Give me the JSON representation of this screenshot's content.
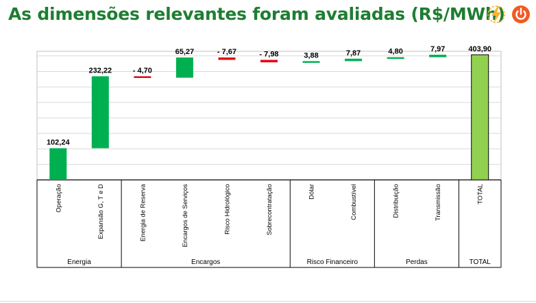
{
  "header": {
    "title": "As dimensões relevantes foram avaliadas (R$/MWh)"
  },
  "colors": {
    "title": "#1e7d32",
    "positive": "#00b050",
    "negative": "#e30613",
    "total": "#92d050",
    "logo_yellow": "#f9b233",
    "logo_orange": "#f15a24"
  },
  "icons": {
    "logo_left": "lightning-bolt-icon",
    "logo_right": "power-icon"
  },
  "chart_data": {
    "type": "bar",
    "subtype": "waterfall",
    "title": "",
    "xlabel": "",
    "ylabel": "",
    "ylim": [
      0,
      415
    ],
    "grid": true,
    "categories": [
      "Operação",
      "Expansão G, T e D",
      "Energia de Reserva",
      "Encargos de Serviços",
      "Risco Hidrológico",
      "Sobrecontratação",
      "Dólar",
      "Combustível",
      "Distribuição",
      "Transmissão",
      "TOTAL"
    ],
    "values": [
      102.24,
      232.22,
      -4.7,
      65.27,
      -7.67,
      -7.98,
      3.88,
      7.87,
      4.8,
      7.97,
      403.9
    ],
    "value_labels": [
      "102,24",
      "232,22",
      "- 4,70",
      "65,27",
      "- 7,67",
      "- 7,98",
      "3,88",
      "7,87",
      "4,80",
      "7,97",
      "403,90"
    ],
    "groups": [
      {
        "label": "Energia",
        "count": 2
      },
      {
        "label": "Encargos",
        "count": 4
      },
      {
        "label": "Risco Financeiro",
        "count": 2
      },
      {
        "label": "Perdas",
        "count": 2
      },
      {
        "label": "TOTAL",
        "count": 1
      }
    ]
  }
}
